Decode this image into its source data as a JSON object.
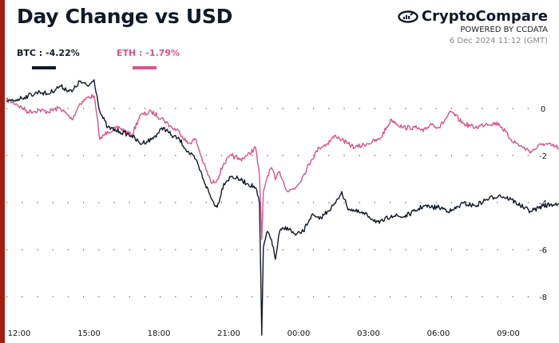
{
  "header": {
    "title": "Day Change vs USD",
    "brand": "CryptoCompare",
    "powered_by": "POWERED BY CCDATA",
    "timestamp": "6 Dec 2024 11:12 (GMT)",
    "accent_color": "#a31d10"
  },
  "chart_data": {
    "type": "line",
    "title": "Day Change vs USD",
    "xlabel": "",
    "ylabel": "",
    "x_ticks": [
      "12:00",
      "15:00",
      "18:00",
      "21:00",
      "00:00",
      "03:00",
      "06:00",
      "09:00"
    ],
    "y_ticks": [
      0,
      -2,
      -4,
      -6,
      -8
    ],
    "ylim": [
      -9.8,
      1.6
    ],
    "grid": "horizontal-dotted",
    "legend_position": "top-left",
    "x": [
      "11:27",
      "11:52",
      "12:23",
      "12:53",
      "13:14",
      "13:45",
      "14:16",
      "14:36",
      "14:57",
      "15:13",
      "15:28",
      "15:48",
      "16:19",
      "16:50",
      "17:11",
      "17:41",
      "18:12",
      "18:33",
      "18:53",
      "19:14",
      "19:35",
      "19:55",
      "20:16",
      "20:30",
      "20:47",
      "21:07",
      "21:28",
      "21:48",
      "22:09",
      "22:19",
      "22:25",
      "22:29",
      "22:40",
      "22:50",
      "23:00",
      "23:11",
      "23:31",
      "23:52",
      "00:12",
      "00:33",
      "00:53",
      "01:14",
      "01:35",
      "01:51",
      "02:05",
      "02:26",
      "02:57",
      "03:28",
      "03:59",
      "04:29",
      "05:00",
      "05:21",
      "05:41",
      "06:02",
      "06:33",
      "07:04",
      "07:35",
      "08:05",
      "08:36",
      "09:07",
      "09:38",
      "09:59",
      "10:29",
      "11:10"
    ],
    "series": [
      {
        "name": "BTC",
        "label": "BTC : -4.22%",
        "color": "#111827",
        "values": [
          0.27,
          0.37,
          0.54,
          0.71,
          0.61,
          0.95,
          0.71,
          1.15,
          0.95,
          1.22,
          -0.14,
          -0.81,
          -0.98,
          -1.15,
          -1.49,
          -1.32,
          -0.81,
          -1.15,
          -1.32,
          -1.83,
          -2.17,
          -3.02,
          -3.86,
          -4.2,
          -3.19,
          -2.88,
          -3.02,
          -3.19,
          -3.36,
          -4.03,
          -9.63,
          -5.9,
          -5.22,
          -5.56,
          -6.41,
          -5.22,
          -5.05,
          -5.39,
          -5.22,
          -4.54,
          -4.71,
          -4.37,
          -4.03,
          -3.53,
          -4.2,
          -4.37,
          -4.54,
          -4.88,
          -4.54,
          -4.61,
          -4.37,
          -4.14,
          -4.2,
          -4.2,
          -4.37,
          -4.03,
          -4.14,
          -3.86,
          -3.69,
          -3.86,
          -4.2,
          -4.37,
          -4.14,
          -4.03
        ]
      },
      {
        "name": "ETH",
        "label": "ETH : -1.79%",
        "color": "#d6548a",
        "values": [
          0.37,
          0.2,
          -0.14,
          -0.07,
          -0.14,
          0.03,
          -0.47,
          0.2,
          0.47,
          0.54,
          -1.32,
          -0.98,
          -0.81,
          -1.15,
          -0.31,
          -0.14,
          -0.47,
          -0.81,
          -0.98,
          -1.49,
          -1.32,
          -2.34,
          -3.19,
          -3.02,
          -2.34,
          -2.0,
          -2.17,
          -2.0,
          -1.66,
          -2.85,
          -5.56,
          -3.53,
          -2.85,
          -2.51,
          -3.02,
          -2.68,
          -3.53,
          -3.36,
          -2.85,
          -2.17,
          -1.66,
          -1.49,
          -1.15,
          -1.32,
          -1.49,
          -1.66,
          -1.49,
          -1.32,
          -0.47,
          -0.81,
          -0.81,
          -0.98,
          -0.64,
          -0.81,
          -0.14,
          -0.64,
          -0.81,
          -0.64,
          -0.64,
          -1.32,
          -1.66,
          -1.83,
          -1.49,
          -1.66
        ]
      }
    ]
  }
}
